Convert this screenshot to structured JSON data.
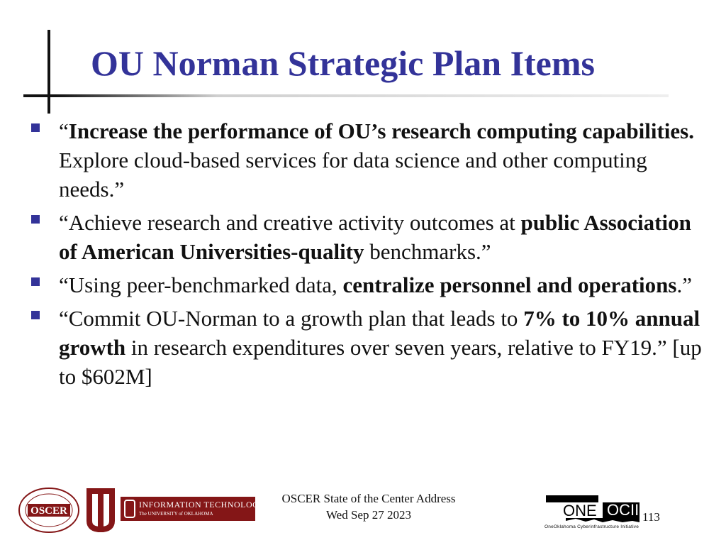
{
  "title": "OU Norman Strategic Plan Items",
  "bullets": [
    {
      "parts": [
        {
          "text": "“",
          "bold": false
        },
        {
          "text": "Increase the performance of OU’s research computing capabilities.",
          "bold": true
        },
        {
          "text": " Explore cloud-based services for data science and other computing needs.”",
          "bold": false
        }
      ]
    },
    {
      "parts": [
        {
          "text": "“Achieve research and creative activity outcomes at ",
          "bold": false
        },
        {
          "text": "public Association of American Universities-quality",
          "bold": true
        },
        {
          "text": " benchmarks.”",
          "bold": false
        }
      ]
    },
    {
      "parts": [
        {
          "text": "“Using peer-benchmarked data, ",
          "bold": false
        },
        {
          "text": "centralize personnel and operations",
          "bold": true
        },
        {
          "text": ".”",
          "bold": false
        }
      ]
    },
    {
      "parts": [
        {
          "text": "“Commit OU-Norman to a growth plan that leads to ",
          "bold": false
        },
        {
          "text": "7% to 10% annual growth",
          "bold": true
        },
        {
          "text": " in research expenditures over seven years, relative to FY19.” [up to $602M]",
          "bold": false
        }
      ]
    }
  ],
  "footer": {
    "line1": "OSCER State of the Center Address",
    "line2": "Wed Sep 27 2023",
    "page_number": "113"
  },
  "logos": {
    "oscer": {
      "text": "OSCER"
    },
    "it": {
      "line1": "INFORMATION TECHNOLOGY",
      "line2": "The UNIVERSITY of OKLAHOMA"
    },
    "oneocii": {
      "text": "ONEOCII",
      "name": "OneOklahoma Cyberinfrastructure Initiative"
    }
  },
  "colors": {
    "title": "#333399",
    "bullet": "#333399",
    "ou_crimson": "#841617"
  }
}
